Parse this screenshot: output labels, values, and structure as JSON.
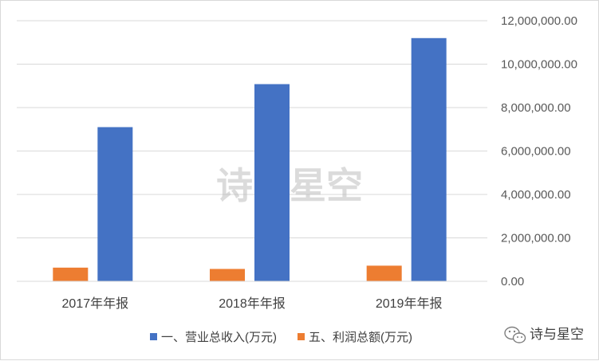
{
  "chart_data": {
    "type": "bar",
    "categories": [
      "2017年年报",
      "2018年年报",
      "2019年年报"
    ],
    "series": [
      {
        "name": "五、利润总额(万元)",
        "values": [
          630000,
          570000,
          720000
        ],
        "color": "#ED7D31"
      },
      {
        "name": "一、营业总收入(万元)",
        "values": [
          7100000,
          9080000,
          11200000
        ],
        "color": "#4472C4"
      }
    ],
    "legend_order": [
      1,
      0
    ],
    "yticks": [
      "0.00",
      "2,000,000.00",
      "4,000,000.00",
      "6,000,000.00",
      "8,000,000.00",
      "10,000,000.00",
      "12,000,000.00"
    ],
    "ylim": [
      0,
      12000000
    ],
    "y_axis_side": "right",
    "grid": true,
    "legend_position": "bottom",
    "gridline_color": "#d9d9d9"
  },
  "watermark": {
    "text": "诗与星空"
  },
  "brand": {
    "label": "诗与星空",
    "icon": "wechat-icon"
  }
}
